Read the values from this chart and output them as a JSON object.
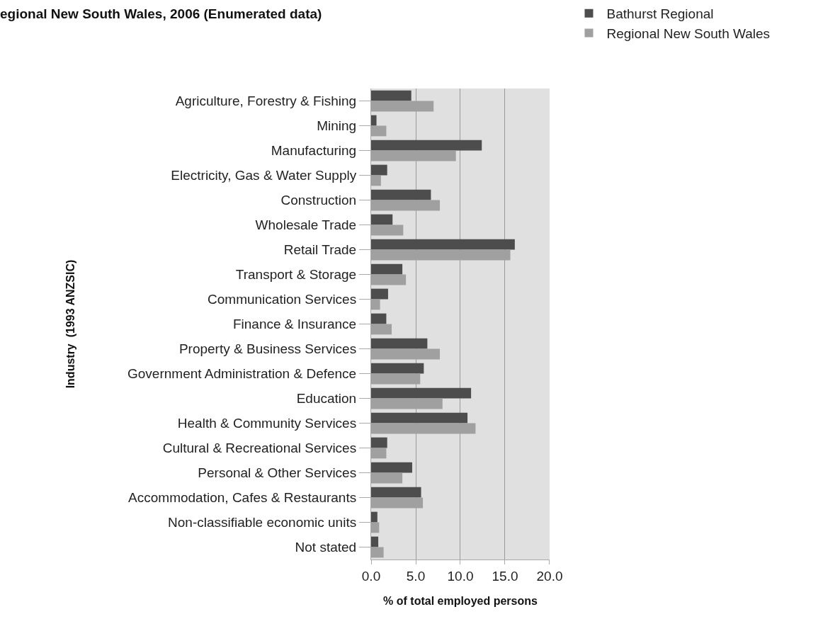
{
  "chart_data": {
    "type": "bar",
    "orientation": "horizontal",
    "title": "egional New South Wales, 2006 (Enumerated data)",
    "xlabel": "% of total employed persons",
    "ylabel": "Industry  (1993 ANZSIC)",
    "categories": [
      "Agriculture, Forestry & Fishing",
      "Mining",
      "Manufacturing",
      "Electricity, Gas & Water Supply",
      "Construction",
      "Wholesale Trade",
      "Retail Trade",
      "Transport & Storage",
      "Communication Services",
      "Finance & Insurance",
      "Property & Business Services",
      "Government Administration & Defence",
      "Education",
      "Health & Community Services",
      "Cultural & Recreational Services",
      "Personal & Other Services",
      "Accommodation, Cafes & Restaurants",
      "Non-classifiable economic units",
      "Not stated"
    ],
    "series": [
      {
        "name": "Bathurst Regional",
        "color": "#4d4d4d",
        "values": [
          4.5,
          0.6,
          12.4,
          1.8,
          6.7,
          2.4,
          16.1,
          3.5,
          1.9,
          1.7,
          6.3,
          5.9,
          11.2,
          10.8,
          1.8,
          4.6,
          5.6,
          0.7,
          0.8
        ]
      },
      {
        "name": "Regional New South Wales",
        "color": "#a0a0a0",
        "values": [
          7.0,
          1.7,
          9.5,
          1.1,
          7.7,
          3.6,
          15.6,
          3.9,
          1.0,
          2.3,
          7.7,
          5.5,
          8.0,
          11.7,
          1.7,
          3.5,
          5.8,
          0.9,
          1.4
        ]
      }
    ],
    "xlim": [
      0,
      20
    ],
    "xticks": [
      {
        "value": 0,
        "label": "0.0"
      },
      {
        "value": 5,
        "label": "5.0"
      },
      {
        "value": 10,
        "label": "10.0"
      },
      {
        "value": 15,
        "label": "15.0"
      },
      {
        "value": 20,
        "label": "20.0"
      }
    ],
    "grid": "x",
    "legend": "top right"
  }
}
